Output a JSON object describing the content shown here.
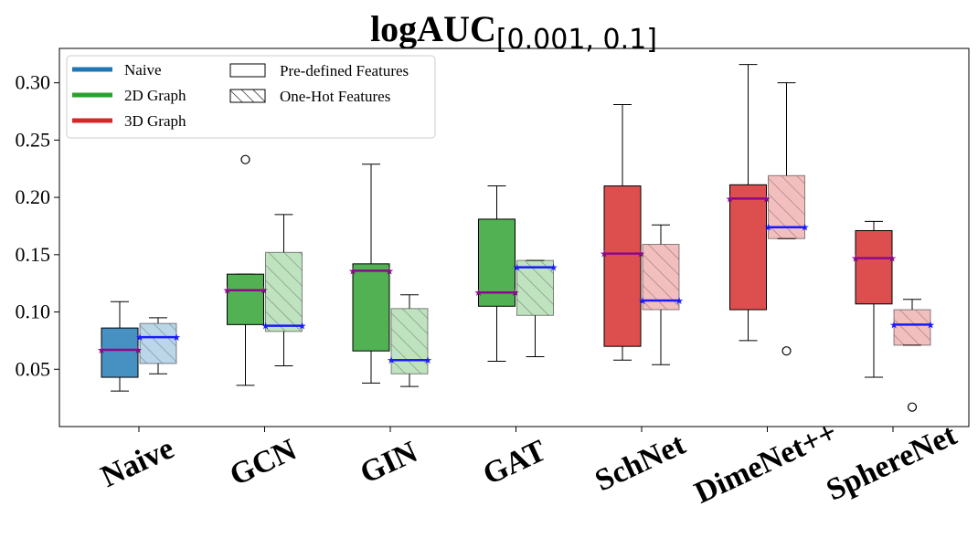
{
  "chart_data": {
    "type": "box",
    "title": "logAUC",
    "title_subscript": "[0.001, 0.1]",
    "xlabel": "",
    "ylabel": "",
    "ylim": [
      0.0,
      0.33
    ],
    "yticks": [
      0.05,
      0.1,
      0.15,
      0.2,
      0.25,
      0.3
    ],
    "ytick_labels": [
      "0.05",
      "0.10",
      "0.15",
      "0.20",
      "0.25",
      "0.30"
    ],
    "categories": [
      "Naive",
      "GCN",
      "GIN",
      "GAT",
      "SchNet",
      "DimeNet++",
      "SphereNet"
    ],
    "category_group": [
      "Naive",
      "2D Graph",
      "2D Graph",
      "2D Graph",
      "3D Graph",
      "3D Graph",
      "3D Graph"
    ],
    "group_colors": {
      "Naive": "#1f77b4",
      "2D Graph": "#2ca02c",
      "3D Graph": "#d62728"
    },
    "median_colors": {
      "Pre-defined Features": "#8b0a8b",
      "One-Hot Features": "#1a1aff"
    },
    "legend": {
      "position": "top-left",
      "groups": [
        "Naive",
        "2D Graph",
        "3D Graph"
      ],
      "features": [
        "Pre-defined Features",
        "One-Hot Features"
      ]
    },
    "series": [
      {
        "name": "Pre-defined Features",
        "hatch": false,
        "boxes": [
          {
            "whislo": 0.031,
            "q1": 0.043,
            "med": 0.067,
            "q3": 0.086,
            "whishi": 0.109,
            "fliers": []
          },
          {
            "whislo": 0.036,
            "q1": 0.089,
            "med": 0.119,
            "q3": 0.133,
            "whishi": 0.133,
            "fliers": [
              0.233
            ]
          },
          {
            "whislo": 0.038,
            "q1": 0.066,
            "med": 0.136,
            "q3": 0.142,
            "whishi": 0.229,
            "fliers": []
          },
          {
            "whislo": 0.057,
            "q1": 0.105,
            "med": 0.117,
            "q3": 0.181,
            "whishi": 0.21,
            "fliers": []
          },
          {
            "whislo": 0.058,
            "q1": 0.07,
            "med": 0.151,
            "q3": 0.21,
            "whishi": 0.281,
            "fliers": []
          },
          {
            "whislo": 0.075,
            "q1": 0.102,
            "med": 0.199,
            "q3": 0.211,
            "whishi": 0.316,
            "fliers": []
          },
          {
            "whislo": 0.043,
            "q1": 0.107,
            "med": 0.147,
            "q3": 0.171,
            "whishi": 0.179,
            "fliers": []
          }
        ]
      },
      {
        "name": "One-Hot Features",
        "hatch": true,
        "boxes": [
          {
            "whislo": 0.046,
            "q1": 0.055,
            "med": 0.078,
            "q3": 0.09,
            "whishi": 0.095,
            "fliers": []
          },
          {
            "whislo": 0.053,
            "q1": 0.083,
            "med": 0.088,
            "q3": 0.152,
            "whishi": 0.185,
            "fliers": []
          },
          {
            "whislo": 0.035,
            "q1": 0.046,
            "med": 0.058,
            "q3": 0.103,
            "whishi": 0.115,
            "fliers": []
          },
          {
            "whislo": 0.061,
            "q1": 0.097,
            "med": 0.139,
            "q3": 0.145,
            "whishi": 0.145,
            "fliers": []
          },
          {
            "whislo": 0.054,
            "q1": 0.102,
            "med": 0.11,
            "q3": 0.159,
            "whishi": 0.176,
            "fliers": []
          },
          {
            "whislo": 0.164,
            "q1": 0.164,
            "med": 0.174,
            "q3": 0.219,
            "whishi": 0.3,
            "fliers": [
              0.066
            ]
          },
          {
            "whislo": 0.071,
            "q1": 0.071,
            "med": 0.089,
            "q3": 0.102,
            "whishi": 0.111,
            "fliers": [
              0.017
            ]
          }
        ]
      }
    ]
  }
}
